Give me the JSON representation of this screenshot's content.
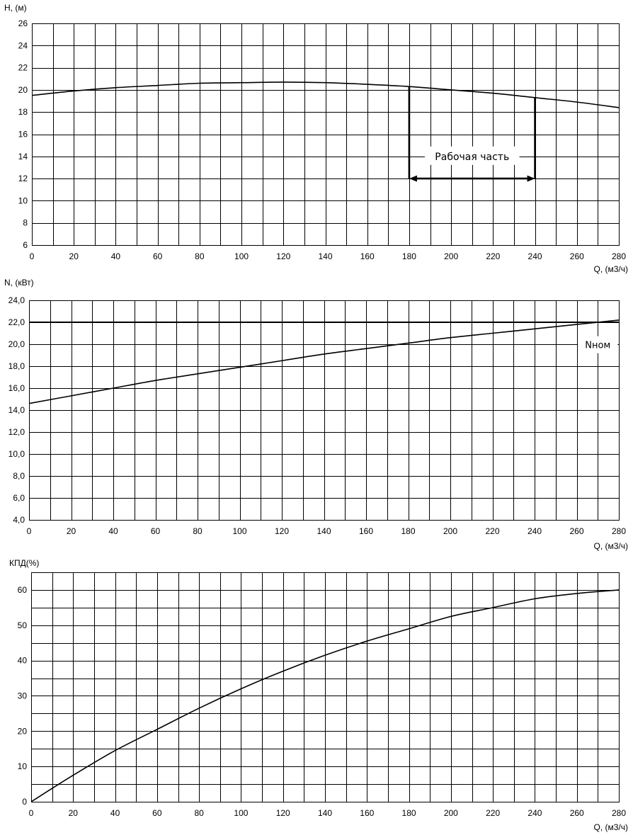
{
  "chart_data": [
    {
      "type": "line",
      "ylabel": "H, (м)",
      "xlabel": "Q, (м3/ч)",
      "xlim": [
        0,
        280
      ],
      "ylim": [
        6,
        26
      ],
      "x_ticks": [
        0,
        20,
        40,
        60,
        80,
        100,
        120,
        140,
        160,
        180,
        200,
        220,
        240,
        260,
        280
      ],
      "y_ticks": [
        6,
        8,
        10,
        12,
        14,
        16,
        18,
        20,
        22,
        24,
        26
      ],
      "y_tick_labels": [
        "6",
        "8",
        "10",
        "12",
        "14",
        "16",
        "18",
        "20",
        "22",
        "24",
        "26"
      ],
      "grid": true,
      "series": [
        {
          "x": [
            0,
            20,
            40,
            60,
            80,
            100,
            120,
            140,
            160,
            180,
            200,
            220,
            240,
            260,
            280
          ],
          "values": [
            19.5,
            19.9,
            20.2,
            20.4,
            20.6,
            20.65,
            20.7,
            20.65,
            20.5,
            20.3,
            20.0,
            19.7,
            19.3,
            18.9,
            18.4
          ]
        }
      ],
      "annotation": {
        "text": "Рабочая часть",
        "q_from": 180,
        "q_to": 240,
        "arrow_h": 12,
        "label_h": 14
      }
    },
    {
      "type": "line",
      "ylabel": "N, (кВт)",
      "xlabel": "Q, (м3/ч)",
      "xlim": [
        0,
        280
      ],
      "ylim": [
        4,
        24
      ],
      "x_ticks": [
        0,
        20,
        40,
        60,
        80,
        100,
        120,
        140,
        160,
        180,
        200,
        220,
        240,
        260,
        280
      ],
      "y_ticks": [
        4,
        6,
        8,
        10,
        12,
        14,
        16,
        18,
        20,
        22,
        24
      ],
      "y_tick_labels": [
        "4,0",
        "6,0",
        "8,0",
        "10,0",
        "12,0",
        "14,0",
        "16,0",
        "18,0",
        "20,0",
        "22,0",
        "24,0"
      ],
      "grid": true,
      "series": [
        {
          "x": [
            0,
            20,
            40,
            60,
            80,
            100,
            120,
            140,
            160,
            180,
            200,
            220,
            240,
            260,
            280
          ],
          "values": [
            14.6,
            15.3,
            16.0,
            16.7,
            17.3,
            17.9,
            18.5,
            19.1,
            19.6,
            20.1,
            20.6,
            21.0,
            21.4,
            21.8,
            22.2
          ]
        }
      ],
      "reference_line": {
        "label": "Nном",
        "value": 22.0,
        "label_q": 270,
        "label_y": 19.7
      }
    },
    {
      "type": "line",
      "ylabel": "КПД(%)",
      "xlabel": "Q, (м3/ч)",
      "xlim": [
        0,
        280
      ],
      "ylim": [
        0,
        65
      ],
      "x_ticks": [
        0,
        20,
        40,
        60,
        80,
        100,
        120,
        140,
        160,
        180,
        200,
        220,
        240,
        260,
        280
      ],
      "y_ticks": [
        0,
        10,
        20,
        30,
        40,
        50,
        60
      ],
      "y_tick_labels": [
        "0",
        "10",
        "20",
        "30",
        "40",
        "50",
        "60"
      ],
      "y_grid_step": 5,
      "grid": true,
      "series": [
        {
          "x": [
            0,
            20,
            40,
            60,
            80,
            100,
            120,
            140,
            160,
            180,
            200,
            220,
            240,
            260,
            280
          ],
          "values": [
            0,
            7.5,
            14.5,
            20.5,
            26.5,
            32,
            37,
            41.5,
            45.5,
            49,
            52.5,
            55,
            57.5,
            59,
            60
          ]
        }
      ]
    }
  ]
}
